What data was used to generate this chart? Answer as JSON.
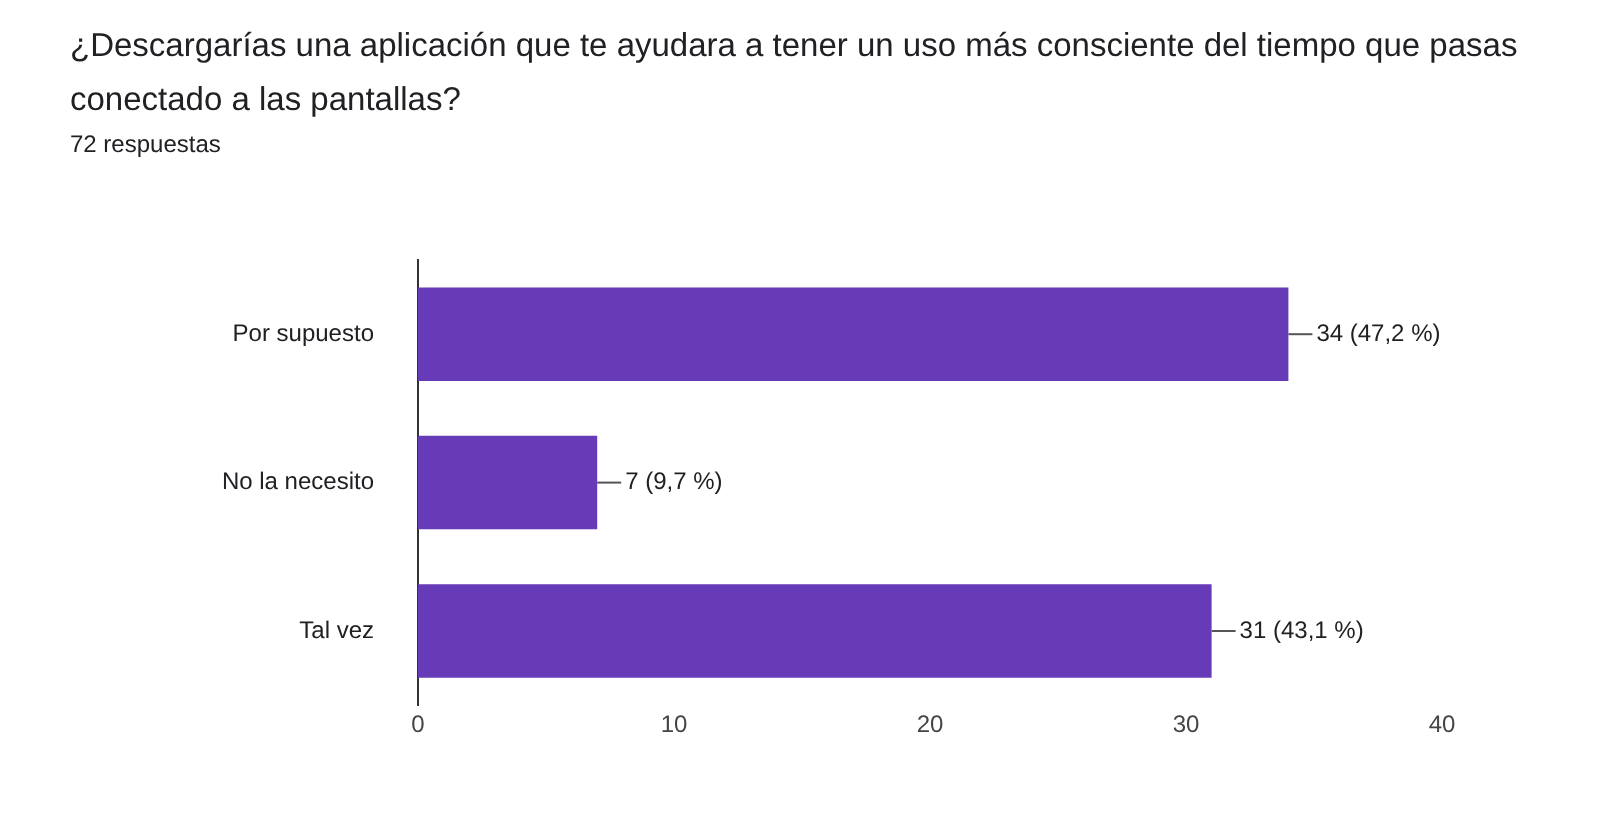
{
  "chart_data": {
    "type": "bar",
    "orientation": "horizontal",
    "title": "¿Descargarías una aplicación que te ayudara a tener un uso más consciente del tiempo que pasas conectado a las pantallas?",
    "subtitle": "72 respuestas",
    "categories": [
      "Por supuesto",
      "No la necesito",
      "Tal vez"
    ],
    "values": [
      34,
      7,
      31
    ],
    "color": "#673ab7",
    "value_labels": [
      "34 (47,2 %)",
      "7 (9,7 %)",
      "31 (43,1 %)"
    ],
    "xlim": [
      0,
      40
    ],
    "xticks": [
      0,
      10,
      20,
      30,
      40
    ],
    "grid": false,
    "legend": false
  }
}
